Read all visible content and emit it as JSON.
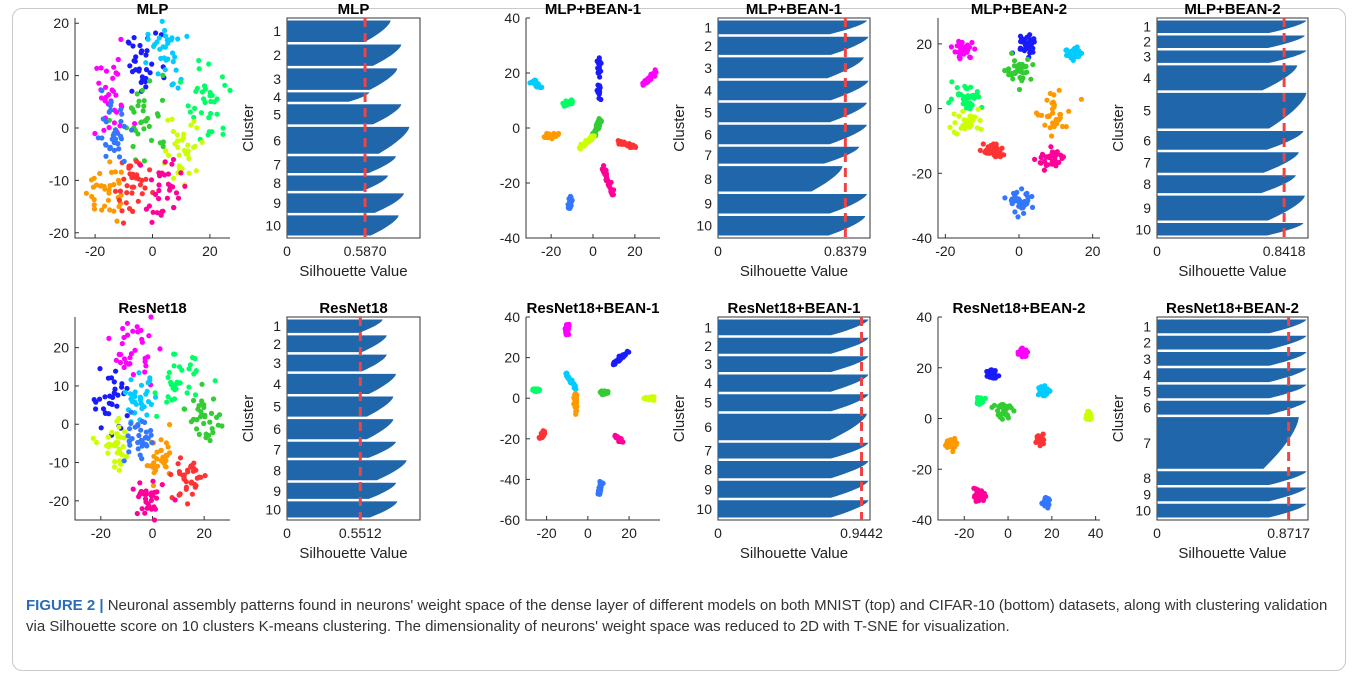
{
  "caption": {
    "label": "FIGURE 2 |",
    "text": " Neuronal assembly patterns found in neurons' weight space of the dense layer of different models on both MNIST (top) and CIFAR-10 (bottom) datasets, along with clustering validation via Silhouette score on 10 clusters K-means clustering. The dimensionality of neurons' weight space was reduced to 2D with T-SNE for visualization."
  },
  "colors": {
    "clusters": [
      "#ff00ff",
      "#1a1aff",
      "#00ccff",
      "#00ff66",
      "#33cc33",
      "#ccff00",
      "#ff9900",
      "#ff3333",
      "#ff0099",
      "#3377ff"
    ],
    "bar": "#1f66aa",
    "mean_line": "#ee4444",
    "axis": "#333333"
  },
  "chart_data": [
    {
      "type": "scatter",
      "title": "MLP",
      "xlim": [
        -27,
        27
      ],
      "ylim": [
        -21,
        21
      ],
      "xticks": [
        -20,
        0,
        20
      ],
      "yticks": [
        -20,
        -10,
        0,
        10,
        20
      ],
      "shape": "blob",
      "clusters": [
        {
          "c": [
            -15,
            5
          ],
          "s": 4
        },
        {
          "c": [
            -3,
            12
          ],
          "s": 3
        },
        {
          "c": [
            4,
            14
          ],
          "s": 3
        },
        {
          "c": [
            20,
            5
          ],
          "s": 4
        },
        {
          "c": [
            -2,
            2
          ],
          "s": 4
        },
        {
          "c": [
            11,
            -3
          ],
          "s": 4
        },
        {
          "c": [
            -17,
            -12
          ],
          "s": 3
        },
        {
          "c": [
            -7,
            -11
          ],
          "s": 3
        },
        {
          "c": [
            4,
            -12
          ],
          "s": 3
        },
        {
          "c": [
            -14,
            -1
          ],
          "s": 3
        }
      ]
    },
    {
      "type": "bar",
      "title": "MLP",
      "xlabel": "Silhouette Value",
      "ylabel": "Cluster",
      "mean": 0.587,
      "mean_label": "0.5870",
      "xticks": [
        0
      ],
      "categories": [
        "1",
        "2",
        "3",
        "4",
        "5",
        "6",
        "7",
        "8",
        "9",
        "10"
      ],
      "sizes": [
        32,
        32,
        32,
        14,
        30,
        40,
        25,
        23,
        29,
        30
      ],
      "maxv": [
        0.78,
        0.86,
        0.83,
        0.62,
        0.86,
        0.92,
        0.82,
        0.76,
        0.88,
        0.84
      ]
    },
    {
      "type": "scatter",
      "title": "MLP+BEAN-1",
      "xlim": [
        -32,
        32
      ],
      "ylim": [
        -40,
        40
      ],
      "xticks": [
        -20,
        0,
        20
      ],
      "yticks": [
        -40,
        -20,
        0,
        20,
        40
      ],
      "shape": "streak",
      "clusters": [
        {
          "c": [
            27,
            18
          ],
          "len": 8,
          "dir": 35
        },
        {
          "c": [
            3,
            18
          ],
          "len": 16,
          "dir": 90
        },
        {
          "c": [
            -27,
            16
          ],
          "len": 5,
          "dir": -25
        },
        {
          "c": [
            -12,
            9
          ],
          "len": 4,
          "dir": 20
        },
        {
          "c": [
            2,
            0
          ],
          "len": 8,
          "dir": 60
        },
        {
          "c": [
            -3,
            -5
          ],
          "len": 8,
          "dir": 30
        },
        {
          "c": [
            -20,
            -3
          ],
          "len": 6,
          "dir": 5
        },
        {
          "c": [
            16,
            -6
          ],
          "len": 8,
          "dir": -15
        },
        {
          "c": [
            7,
            -19
          ],
          "len": 12,
          "dir": -65
        },
        {
          "c": [
            -11,
            -27
          ],
          "len": 4,
          "dir": 80
        }
      ]
    },
    {
      "type": "bar",
      "title": "MLP+BEAN-1",
      "xlabel": "Silhouette Value",
      "ylabel": "Cluster",
      "mean": 0.8379,
      "mean_label": "0.8379",
      "xticks": [
        0
      ],
      "categories": [
        "1",
        "2",
        "3",
        "4",
        "5",
        "6",
        "7",
        "8",
        "9",
        "10"
      ],
      "sizes": [
        21,
        28,
        32,
        30,
        30,
        30,
        26,
        39,
        30,
        30
      ],
      "maxv": [
        0.98,
        0.99,
        0.96,
        0.99,
        0.98,
        0.98,
        0.93,
        0.82,
        0.98,
        0.97
      ]
    },
    {
      "type": "scatter",
      "title": "MLP+BEAN-2",
      "xlim": [
        -22,
        22
      ],
      "ylim": [
        -40,
        28
      ],
      "xticks": [
        -20,
        0,
        20
      ],
      "yticks": [
        -40,
        -20,
        0,
        20
      ],
      "shape": "blob",
      "clusters": [
        {
          "c": [
            -15,
            18
          ],
          "s": 1.4
        },
        {
          "c": [
            2,
            20
          ],
          "s": 1.6
        },
        {
          "c": [
            15,
            17
          ],
          "s": 1.2
        },
        {
          "c": [
            -14,
            4
          ],
          "s": 2
        },
        {
          "c": [
            0,
            12
          ],
          "s": 1.8
        },
        {
          "c": [
            -14,
            -4
          ],
          "s": 2.2
        },
        {
          "c": [
            10,
            -2
          ],
          "s": 2.8
        },
        {
          "c": [
            -7,
            -13
          ],
          "s": 1.3
        },
        {
          "c": [
            9,
            -16
          ],
          "s": 2
        },
        {
          "c": [
            1,
            -29
          ],
          "s": 1.6
        }
      ]
    },
    {
      "type": "bar",
      "title": "MLP+BEAN-2",
      "xlabel": "Silhouette Value",
      "ylabel": "Cluster",
      "mean": 0.8418,
      "mean_label": "0.8418",
      "xticks": [
        0
      ],
      "categories": [
        "1",
        "2",
        "3",
        "4",
        "5",
        "6",
        "7",
        "8",
        "9",
        "10"
      ],
      "sizes": [
        14,
        14,
        14,
        28,
        40,
        21,
        23,
        20,
        28,
        14
      ],
      "maxv": [
        0.99,
        0.98,
        0.99,
        0.93,
        0.99,
        0.97,
        0.94,
        0.92,
        0.98,
        0.97
      ]
    },
    {
      "type": "scatter",
      "title": "ResNet18",
      "xlim": [
        -30,
        30
      ],
      "ylim": [
        -25,
        28
      ],
      "xticks": [
        -20,
        0,
        20
      ],
      "yticks": [
        -20,
        -10,
        0,
        10,
        20
      ],
      "shape": "blob",
      "clusters": [
        {
          "c": [
            -8,
            20
          ],
          "s": 4
        },
        {
          "c": [
            -16,
            7
          ],
          "s": 4
        },
        {
          "c": [
            -5,
            6
          ],
          "s": 3
        },
        {
          "c": [
            10,
            10
          ],
          "s": 4
        },
        {
          "c": [
            20,
            2
          ],
          "s": 3
        },
        {
          "c": [
            -14,
            -6
          ],
          "s": 3
        },
        {
          "c": [
            3,
            -10
          ],
          "s": 3
        },
        {
          "c": [
            14,
            -14
          ],
          "s": 3
        },
        {
          "c": [
            -2,
            -20
          ],
          "s": 3
        },
        {
          "c": [
            -6,
            -4
          ],
          "s": 3
        }
      ]
    },
    {
      "type": "bar",
      "title": "ResNet18",
      "xlabel": "Silhouette Value",
      "ylabel": "Cluster",
      "mean": 0.5512,
      "mean_label": "0.5512",
      "xticks": [
        0
      ],
      "categories": [
        "1",
        "2",
        "3",
        "4",
        "5",
        "6",
        "7",
        "8",
        "9",
        "10"
      ],
      "sizes": [
        20,
        25,
        25,
        30,
        30,
        30,
        24,
        30,
        24,
        24
      ],
      "maxv": [
        0.72,
        0.75,
        0.75,
        0.82,
        0.8,
        0.8,
        0.82,
        0.9,
        0.82,
        0.83
      ]
    },
    {
      "type": "scatter",
      "title": "ResNet18+BEAN-1",
      "xlim": [
        -30,
        35
      ],
      "ylim": [
        -60,
        40
      ],
      "xticks": [
        -20,
        0,
        20
      ],
      "yticks": [
        -60,
        -40,
        -20,
        0,
        20,
        40
      ],
      "shape": "streak",
      "clusters": [
        {
          "c": [
            -10,
            34
          ],
          "len": 5,
          "dir": 80
        },
        {
          "c": [
            16,
            20
          ],
          "len": 10,
          "dir": 40
        },
        {
          "c": [
            -8,
            8
          ],
          "len": 10,
          "dir": 120
        },
        {
          "c": [
            -25,
            4
          ],
          "len": 3,
          "dir": 0
        },
        {
          "c": [
            8,
            3
          ],
          "len": 4,
          "dir": 0
        },
        {
          "c": [
            30,
            0
          ],
          "len": 4,
          "dir": 0
        },
        {
          "c": [
            -6,
            -3
          ],
          "len": 10,
          "dir": 90
        },
        {
          "c": [
            -22,
            -18
          ],
          "len": 4,
          "dir": 60
        },
        {
          "c": [
            15,
            -20
          ],
          "len": 4,
          "dir": -40
        },
        {
          "c": [
            6,
            -44
          ],
          "len": 6,
          "dir": 80
        }
      ]
    },
    {
      "type": "bar",
      "title": "ResNet18+BEAN-1",
      "xlabel": "Silhouette Value",
      "ylabel": "Cluster",
      "mean": 0.9442,
      "mean_label": "0.9442",
      "xticks": [
        0
      ],
      "categories": [
        "1",
        "2",
        "3",
        "4",
        "5",
        "6",
        "7",
        "8",
        "9",
        "10"
      ],
      "sizes": [
        24,
        24,
        24,
        26,
        26,
        40,
        24,
        26,
        26,
        26
      ],
      "maxv": [
        0.99,
        0.99,
        0.99,
        0.99,
        0.99,
        0.98,
        0.99,
        0.99,
        0.99,
        0.99
      ]
    },
    {
      "type": "scatter",
      "title": "ResNet18+BEAN-2",
      "xlim": [
        -32,
        42
      ],
      "ylim": [
        -40,
        40
      ],
      "xticks": [
        -20,
        0,
        20,
        40
      ],
      "yticks": [
        -40,
        -20,
        0,
        20,
        40
      ],
      "shape": "blob",
      "clusters": [
        {
          "c": [
            7,
            26
          ],
          "s": 1
        },
        {
          "c": [
            -7,
            18
          ],
          "s": 1
        },
        {
          "c": [
            16,
            11
          ],
          "s": 1.2
        },
        {
          "c": [
            -13,
            7
          ],
          "s": 0.8
        },
        {
          "c": [
            -3,
            3
          ],
          "s": 2.2
        },
        {
          "c": [
            37,
            1
          ],
          "s": 0.8
        },
        {
          "c": [
            -26,
            -10
          ],
          "s": 1.2
        },
        {
          "c": [
            15,
            -8
          ],
          "s": 1
        },
        {
          "c": [
            -13,
            -31
          ],
          "s": 1.1
        },
        {
          "c": [
            17,
            -33
          ],
          "s": 0.8
        }
      ]
    },
    {
      "type": "bar",
      "title": "ResNet18+BEAN-2",
      "xlabel": "Silhouette Value",
      "ylabel": "Cluster",
      "mean": 0.8717,
      "mean_label": "0.8717",
      "xticks": [
        0
      ],
      "categories": [
        "1",
        "2",
        "3",
        "4",
        "5",
        "6",
        "7",
        "8",
        "9",
        "10"
      ],
      "sizes": [
        16,
        16,
        16,
        16,
        16,
        16,
        60,
        16,
        16,
        16
      ],
      "maxv": [
        0.99,
        0.99,
        0.99,
        0.99,
        0.99,
        0.99,
        0.94,
        0.99,
        0.99,
        0.99
      ]
    }
  ]
}
